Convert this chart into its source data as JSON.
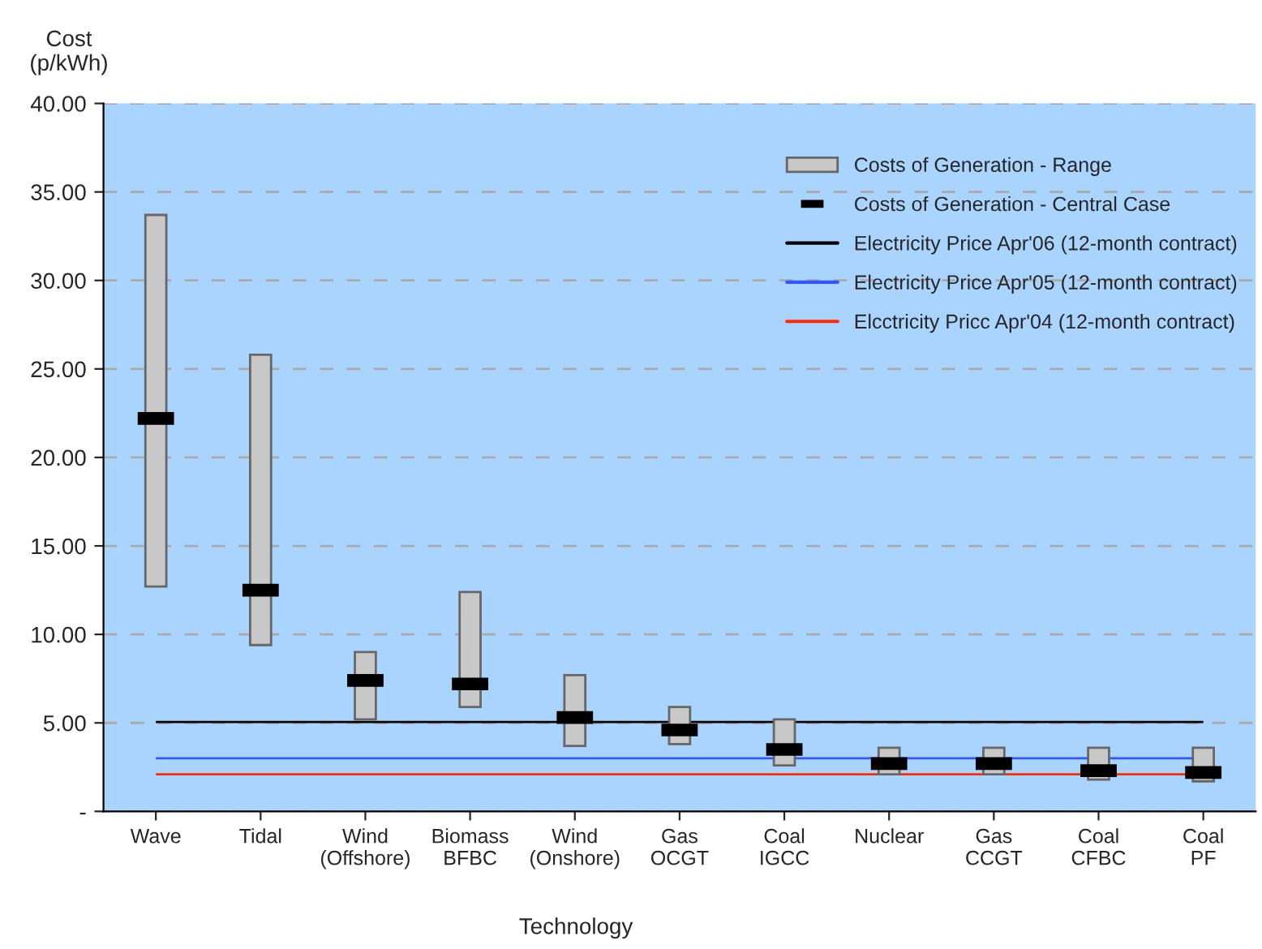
{
  "chart_data": {
    "type": "bar",
    "categories": [
      "Wave",
      "Tidal",
      "Wind\n(Offshore)",
      "Biomass\nBFBC",
      "Wind\n(Onshore)",
      "Gas\nOCGT",
      "Coal\nIGCC",
      "Nuclear",
      "Gas\nCCGT",
      "Coal\nCFBC",
      "Coal\nPF"
    ],
    "series": [
      {
        "name": "Costs of Generation - Range",
        "color": "#c8c8c8",
        "base": [
          12.7,
          9.4,
          5.2,
          5.9,
          3.7,
          3.8,
          2.6,
          2.1,
          2.1,
          1.8,
          1.7
        ],
        "values": [
          21.0,
          16.4,
          3.8,
          6.5,
          4.0,
          2.1,
          2.6,
          1.5,
          1.5,
          1.8,
          1.9
        ]
      },
      {
        "name": "Costs of Generation - Central Case",
        "type": "scatter",
        "color": "#000000",
        "values": [
          22.2,
          12.5,
          7.4,
          7.2,
          5.3,
          4.6,
          3.5,
          2.7,
          2.7,
          2.3,
          2.2
        ]
      }
    ],
    "ref_lines": [
      {
        "axis": "y",
        "value": 5.05,
        "label": "Electricity Price Apr'06 (12-month contract)",
        "color": "#000000"
      },
      {
        "axis": "y",
        "value": 3.0,
        "label": "Electricity Price Apr'05 (12-month contract)",
        "color": "#3355ff"
      },
      {
        "axis": "y",
        "value": 2.1,
        "label": "Elcctricity Pricc Apr'04 (12-month contract)",
        "color": "#ff2a00"
      }
    ],
    "xlabel": "Technology",
    "ylabel": "Cost\n(p/kWh)",
    "ylim": [
      0,
      40
    ],
    "yticks": [
      {
        "value": 0,
        "label": "-"
      },
      {
        "value": 5,
        "label": "5.00"
      },
      {
        "value": 10,
        "label": "10.00"
      },
      {
        "value": 15,
        "label": "15.00"
      },
      {
        "value": 20,
        "label": "20.00"
      },
      {
        "value": 25,
        "label": "25.00"
      },
      {
        "value": 30,
        "label": "30.00"
      },
      {
        "value": 35,
        "label": "35.00"
      },
      {
        "value": 40,
        "label": "40.00"
      }
    ],
    "grid": "y",
    "legend": "top right"
  }
}
